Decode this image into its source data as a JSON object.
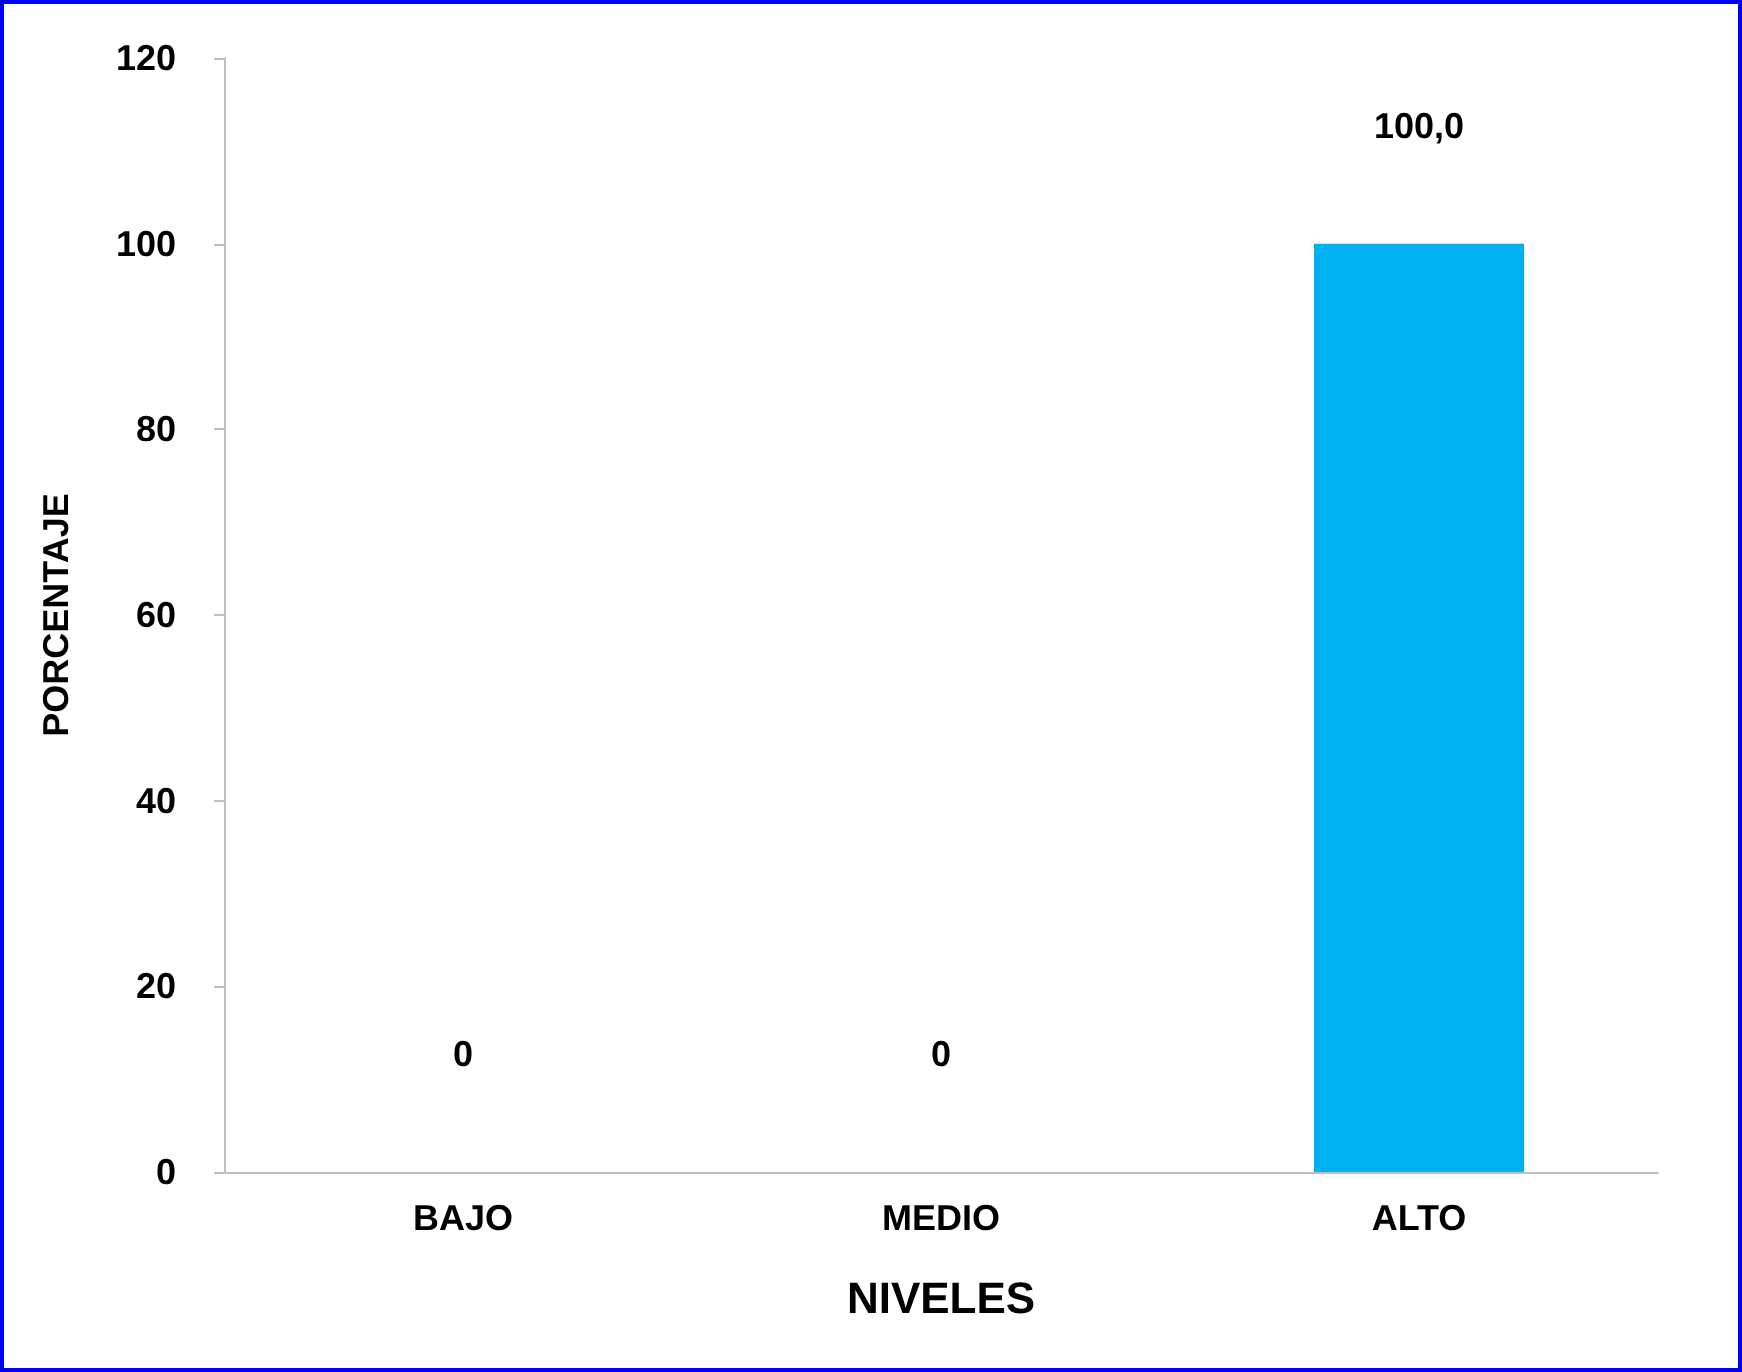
{
  "chart_data": {
    "type": "bar",
    "xlabel": "NIVELES",
    "ylabel": "PORCENTAJE",
    "categories": [
      "BAJO",
      "MEDIO",
      "ALTO"
    ],
    "values": [
      0,
      0,
      100
    ],
    "value_labels": [
      "0",
      "0",
      "100,0"
    ],
    "color": "#00b0f0",
    "ylim": [
      0,
      120
    ],
    "yticks": [
      0,
      20,
      40,
      60,
      80,
      100,
      120
    ],
    "grid": false
  }
}
